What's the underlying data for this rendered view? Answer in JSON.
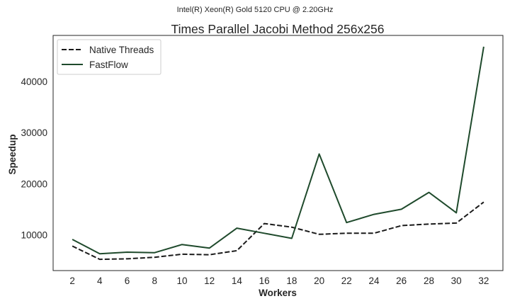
{
  "chart_data": {
    "type": "line",
    "suptitle": "Intel(R) Xeon(R) Gold 5120 CPU @ 2.20GHz",
    "title": "Times Parallel Jacobi Method 256x256",
    "xlabel": "Workers",
    "ylabel": "Speedup",
    "x": [
      2,
      4,
      6,
      8,
      10,
      12,
      14,
      16,
      18,
      20,
      22,
      24,
      26,
      28,
      30,
      32
    ],
    "xticks": [
      "2",
      "4",
      "6",
      "8",
      "10",
      "12",
      "14",
      "16",
      "18",
      "20",
      "22",
      "24",
      "26",
      "28",
      "30",
      "32"
    ],
    "yticks": [
      "10000",
      "20000",
      "30000",
      "40000"
    ],
    "ylim": [
      3000,
      49000
    ],
    "grid": false,
    "legend_position": "top-left",
    "series": [
      {
        "name": "Native Threads",
        "style": "dashed",
        "color": "#1a1a1a",
        "values": [
          7800,
          5200,
          5300,
          5600,
          6200,
          6100,
          6900,
          12200,
          11500,
          10100,
          10300,
          10300,
          11800,
          12100,
          12300,
          16400
        ]
      },
      {
        "name": "FastFlow",
        "style": "solid",
        "color": "#1f4a2c",
        "values": [
          9100,
          6300,
          6600,
          6500,
          8100,
          7400,
          11300,
          10300,
          9300,
          25800,
          12400,
          14000,
          15000,
          18300,
          14300,
          46800
        ]
      }
    ]
  }
}
